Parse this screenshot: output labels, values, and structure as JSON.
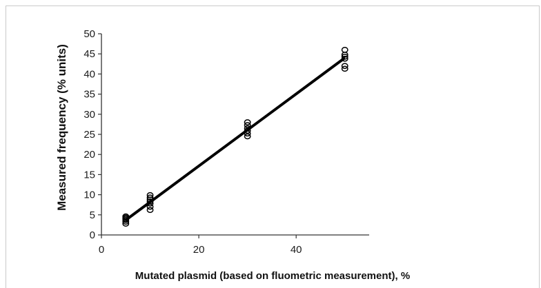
{
  "chart_data": {
    "type": "scatter",
    "xlabel": "Mutated plasmid (based on fluometric measurement), %",
    "ylabel": "Measured frequency (% units)",
    "xlim": [
      0,
      55
    ],
    "ylim": [
      0,
      50
    ],
    "x_ticks": [
      0,
      20,
      40
    ],
    "y_ticks": [
      0,
      5,
      10,
      15,
      20,
      25,
      30,
      35,
      40,
      45,
      50
    ],
    "grid": false,
    "legend": "none",
    "points": [
      {
        "x": 5,
        "y": 2.8
      },
      {
        "x": 5,
        "y": 3.3
      },
      {
        "x": 5,
        "y": 3.7
      },
      {
        "x": 5,
        "y": 4.0
      },
      {
        "x": 5,
        "y": 4.3
      },
      {
        "x": 5,
        "y": 4.6
      },
      {
        "x": 10,
        "y": 6.2
      },
      {
        "x": 10,
        "y": 7.0
      },
      {
        "x": 10,
        "y": 7.8
      },
      {
        "x": 10,
        "y": 8.3
      },
      {
        "x": 10,
        "y": 8.8
      },
      {
        "x": 10,
        "y": 9.3
      },
      {
        "x": 10,
        "y": 9.9
      },
      {
        "x": 30,
        "y": 24.5
      },
      {
        "x": 30,
        "y": 25.2
      },
      {
        "x": 30,
        "y": 25.9
      },
      {
        "x": 30,
        "y": 26.5
      },
      {
        "x": 30,
        "y": 27.3
      },
      {
        "x": 30,
        "y": 28.0
      },
      {
        "x": 50,
        "y": 41.3
      },
      {
        "x": 50,
        "y": 42.0
      },
      {
        "x": 50,
        "y": 43.8
      },
      {
        "x": 50,
        "y": 44.3
      },
      {
        "x": 50,
        "y": 44.8
      },
      {
        "x": 50,
        "y": 46.0
      }
    ],
    "trendline": {
      "x": [
        5,
        50
      ],
      "y": [
        3.7,
        44.0
      ]
    },
    "colors": {
      "marker": "#000000",
      "line": "#000000",
      "axis": "#333333"
    }
  }
}
